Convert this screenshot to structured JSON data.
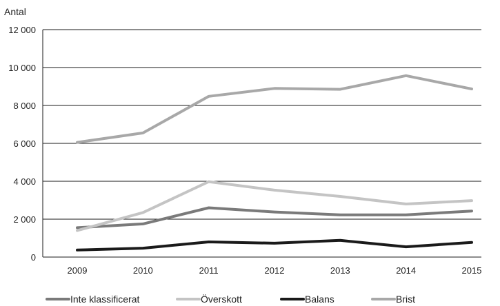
{
  "chart_data": {
    "type": "line",
    "ylabel": "Antal",
    "ylim": [
      0,
      12000
    ],
    "yticks": [
      0,
      2000,
      4000,
      6000,
      8000,
      10000,
      12000
    ],
    "ytick_labels": [
      "0",
      "2 000",
      "4 000",
      "6 000",
      "8 000",
      "10 000",
      "12 000"
    ],
    "x": [
      "2009",
      "2010",
      "2011",
      "2012",
      "2013",
      "2014",
      "2015"
    ],
    "grid": "horizontal",
    "legend_position": "bottom",
    "series": [
      {
        "name": "Inte klassificerat",
        "color": "#7a7a7a",
        "values": [
          1550,
          1750,
          2600,
          2380,
          2230,
          2230,
          2430
        ]
      },
      {
        "name": "Överskott",
        "color": "#c4c4c4",
        "values": [
          1400,
          2350,
          3980,
          3530,
          3200,
          2800,
          2980
        ]
      },
      {
        "name": "Balans",
        "color": "#1a1a1a",
        "values": [
          370,
          470,
          800,
          730,
          880,
          540,
          770
        ]
      },
      {
        "name": "Brist",
        "color": "#a8a8a8",
        "values": [
          6050,
          6550,
          8480,
          8900,
          8850,
          9570,
          8870
        ]
      }
    ]
  }
}
